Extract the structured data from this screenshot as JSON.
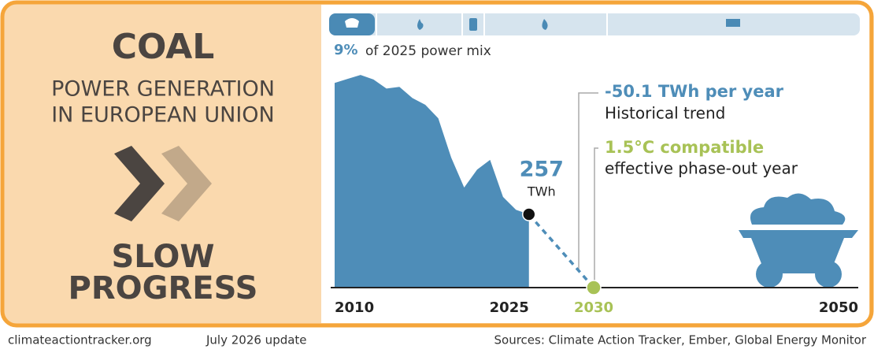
{
  "panel": {
    "title": "COAL",
    "subtitle_lines": [
      "POWER GENERATION",
      "IN EUROPEAN UNION"
    ],
    "status_lines": [
      "SLOW",
      "PROGRESS"
    ]
  },
  "share": {
    "value_label": "9%",
    "text": "of 2025 power mix"
  },
  "chart_data": {
    "type": "area",
    "color": "#4e8db8",
    "x": [
      2010,
      2011,
      2012,
      2013,
      2014,
      2015,
      2016,
      2017,
      2018,
      2019,
      2020,
      2021,
      2022,
      2023,
      2024,
      2025
    ],
    "values": [
      718,
      732,
      746,
      730,
      698,
      704,
      665,
      641,
      594,
      456,
      351,
      414,
      448,
      318,
      273,
      257
    ],
    "xlim": [
      2010,
      2050
    ],
    "ylim": [
      0,
      760
    ],
    "xticks": [
      2010,
      2025,
      2030,
      2050
    ],
    "trend": {
      "x": [
        2025,
        2030
      ],
      "values": [
        257,
        0
      ],
      "color": "#4e8db8",
      "end_color": "#a8c256"
    },
    "last_label_unit": "TWh",
    "annotations": [
      {
        "title": "-50.1 TWh per year",
        "text": "Historical trend",
        "color": "#4e8db8"
      },
      {
        "title": "1.5°C compatible",
        "text": "effective phase-out year",
        "color": "#a8c256"
      }
    ]
  },
  "footer": {
    "site": "climateactiontracker.org",
    "update": "July 2026 update",
    "sources": "Sources: Climate Action Tracker, Ember, Global Energy Monitor"
  }
}
